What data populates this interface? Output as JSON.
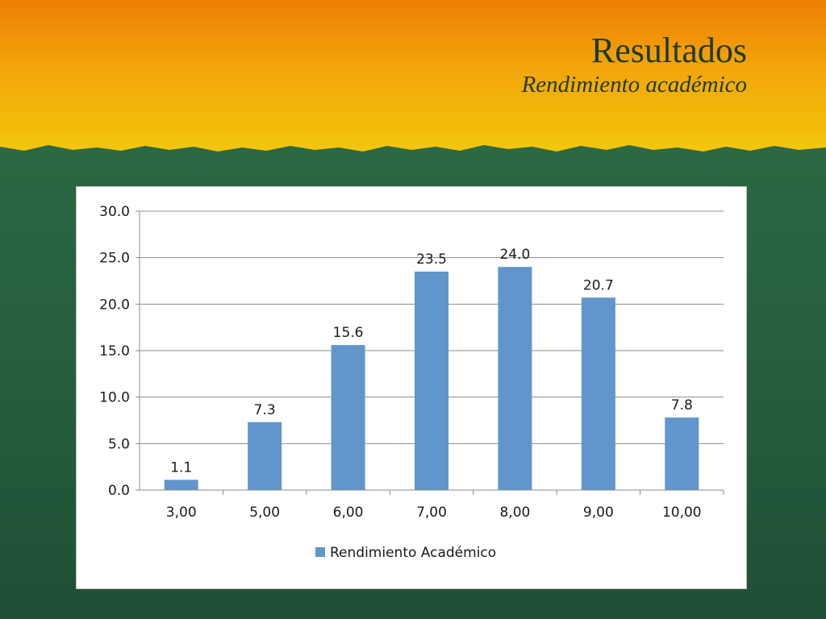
{
  "slide": {
    "title": "Resultados",
    "subtitle": "Rendimiento académico"
  },
  "colors": {
    "header_top": "#ef7f06",
    "header_bottom": "#f2c20a",
    "background": "#2a6442",
    "bar": "#6096cb",
    "grid": "#8c8c8c",
    "text": "#1a1a1a"
  },
  "chart_data": {
    "type": "bar",
    "categories": [
      "3,00",
      "5,00",
      "6,00",
      "7,00",
      "8,00",
      "9,00",
      "10,00"
    ],
    "series": [
      {
        "name": "Rendimiento Académico",
        "values": [
          1.1,
          7.3,
          15.6,
          23.5,
          24.0,
          20.7,
          7.8
        ],
        "data_labels": [
          "1.1",
          "7.3",
          "15.6",
          "23.5",
          "24.0",
          "20.7",
          "7.8"
        ]
      }
    ],
    "ylim": [
      0,
      30
    ],
    "yticks": [
      "0.0",
      "5.0",
      "10.0",
      "15.0",
      "20.0",
      "25.0",
      "30.0"
    ],
    "grid": true,
    "legend": "bottom"
  }
}
